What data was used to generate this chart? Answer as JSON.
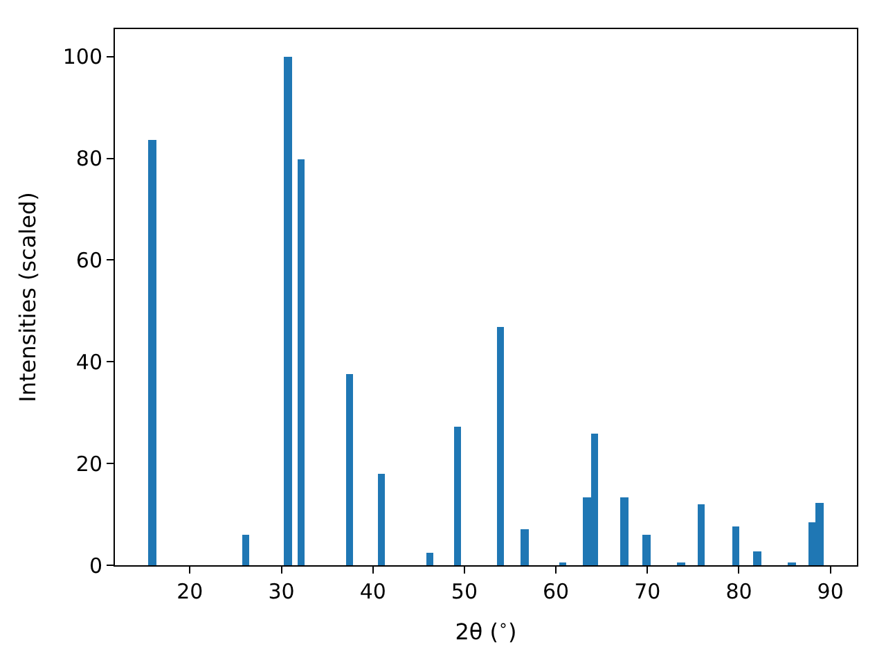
{
  "chart_data": {
    "type": "bar",
    "xlabel": "2θ ($^{∘}$)",
    "ylabel": "Intensities (scaled)",
    "x": [
      15.9,
      26.1,
      30.7,
      32.1,
      37.4,
      40.9,
      46.2,
      49.2,
      53.9,
      56.6,
      60.8,
      63.4,
      64.2,
      67.5,
      69.9,
      73.7,
      75.9,
      79.7,
      82.0,
      85.8,
      88.0,
      88.8
    ],
    "values": [
      83.7,
      6.0,
      100,
      79.7,
      37.7,
      17.9,
      2.5,
      27.3,
      46.8,
      7.1,
      0.6,
      13.3,
      25.8,
      13.3,
      6.0,
      0.6,
      11.9,
      7.6,
      2.8,
      0.6,
      8.4,
      12.2
    ],
    "color": "#1f77b4",
    "xlim": [
      11.8,
      92.9
    ],
    "ylim": [
      0,
      105.4
    ],
    "xticks": [
      20,
      30,
      40,
      50,
      60,
      70,
      80,
      90
    ],
    "yticks": [
      0,
      20,
      40,
      60,
      80,
      100
    ]
  }
}
